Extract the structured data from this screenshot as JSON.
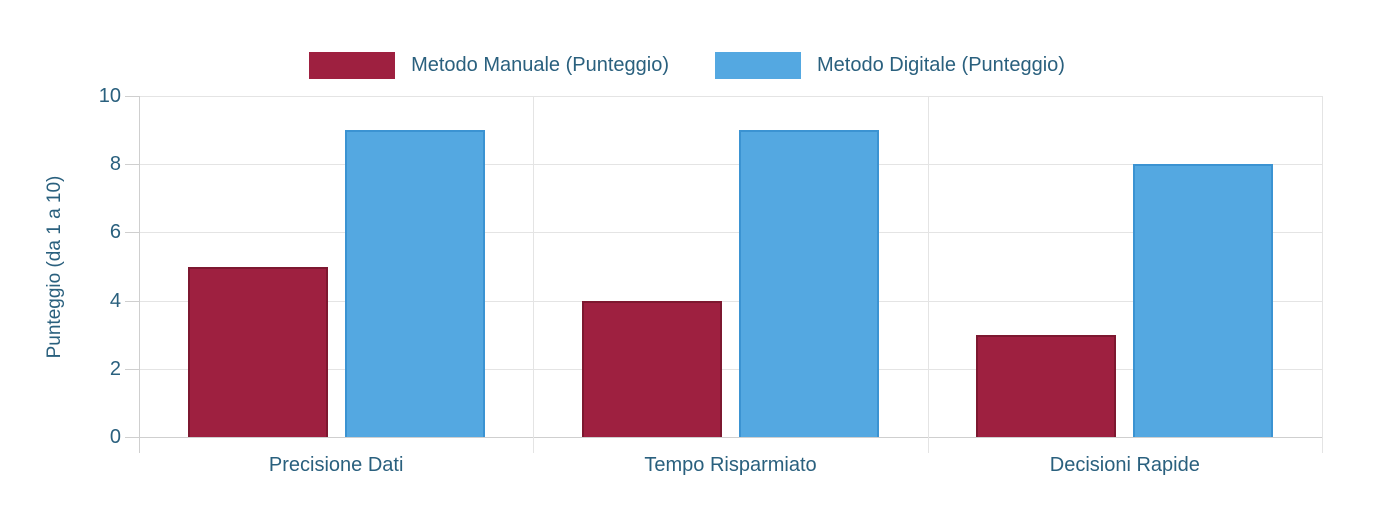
{
  "chart_data": {
    "type": "bar",
    "title": "",
    "categories": [
      "Precisione Dati",
      "Tempo Risparmiato",
      "Decisioni Rapide"
    ],
    "series": [
      {
        "name": "Metodo Manuale (Punteggio)",
        "values": [
          5,
          4,
          3
        ],
        "color": "#9e2040",
        "border_color": "#7d1830"
      },
      {
        "name": "Metodo Digitale (Punteggio)",
        "values": [
          9,
          9,
          8
        ],
        "color": "#54a8e1",
        "border_color": "#3b93d2"
      }
    ],
    "xlabel": "",
    "ylabel": "Punteggio (da 1 a 10)",
    "ylim": [
      0,
      10
    ],
    "yticks": [
      0,
      2,
      4,
      6,
      8,
      10
    ],
    "grid": true,
    "legend_position": "top"
  },
  "colors": {
    "text": "#2a607e",
    "gridline": "#e4e4e4",
    "axis_line": "#cfcfcf",
    "background": "#ffffff"
  }
}
